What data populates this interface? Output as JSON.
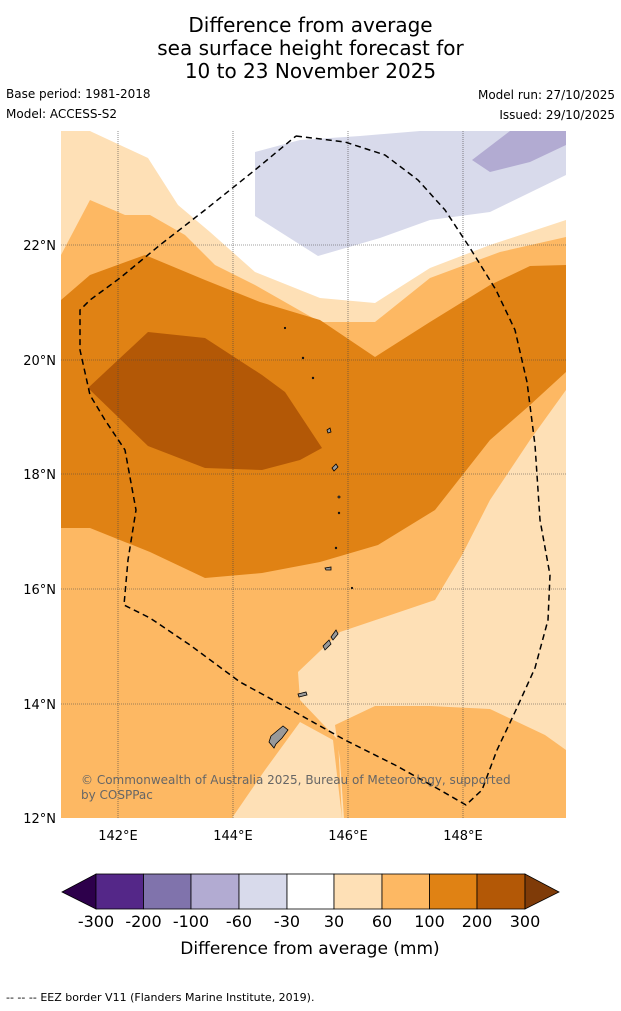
{
  "title": {
    "line1": "Difference from average",
    "line2": "sea surface height forecast for",
    "line3": "10 to 23 November 2025"
  },
  "meta": {
    "base_period": "Base period: 1981-2018",
    "model": "Model: ACCESS-S2",
    "model_run": "Model run: 27/10/2025",
    "issued": "Issued: 29/10/2025"
  },
  "map": {
    "lat_labels": [
      "22°N",
      "20°N",
      "18°N",
      "16°N",
      "14°N",
      "12°N"
    ],
    "lon_labels": [
      "142°E",
      "144°E",
      "146°E",
      "148°E"
    ],
    "copyright_line1": "© Commonwealth of Australia 2025, Bureau of Meteorology, supported",
    "copyright_line2": "by COSPPac",
    "land_color": "#999999",
    "eez_line": "dashed black"
  },
  "colorbar": {
    "tick_labels": [
      "-300",
      "-200",
      "-100",
      "-60",
      "-30",
      "30",
      "60",
      "100",
      "200",
      "300"
    ],
    "label": "Difference from average (mm)",
    "colors": [
      "#2d004b",
      "#542788",
      "#8073ac",
      "#b2abd2",
      "#d8daeb",
      "#ffffff",
      "#fee0b6",
      "#fdb863",
      "#e08214",
      "#b35806",
      "#7f3b08"
    ]
  },
  "footer": {
    "legend_symbol": "--  --  --",
    "legend_text": "EEZ border V11 (Flanders Marine Institute, 2019)."
  }
}
